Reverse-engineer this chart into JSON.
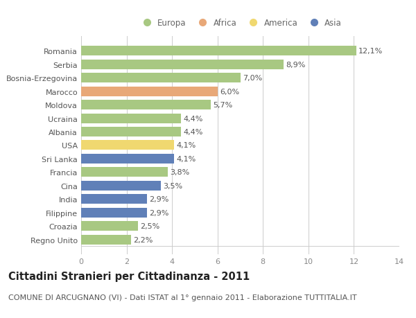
{
  "countries": [
    "Romania",
    "Serbia",
    "Bosnia-Erzegovina",
    "Marocco",
    "Moldova",
    "Ucraina",
    "Albania",
    "USA",
    "Sri Lanka",
    "Francia",
    "Cina",
    "India",
    "Filippine",
    "Croazia",
    "Regno Unito"
  ],
  "values": [
    12.1,
    8.9,
    7.0,
    6.0,
    5.7,
    4.4,
    4.4,
    4.1,
    4.1,
    3.8,
    3.5,
    2.9,
    2.9,
    2.5,
    2.2
  ],
  "labels": [
    "12,1%",
    "8,9%",
    "7,0%",
    "6,0%",
    "5,7%",
    "4,4%",
    "4,4%",
    "4,1%",
    "4,1%",
    "3,8%",
    "3,5%",
    "2,9%",
    "2,9%",
    "2,5%",
    "2,2%"
  ],
  "continents": [
    "Europa",
    "Europa",
    "Europa",
    "Africa",
    "Europa",
    "Europa",
    "Europa",
    "America",
    "Asia",
    "Europa",
    "Asia",
    "Asia",
    "Asia",
    "Europa",
    "Europa"
  ],
  "continent_colors": {
    "Europa": "#a8c882",
    "Africa": "#e8a878",
    "America": "#f0d870",
    "Asia": "#6080b8"
  },
  "legend_order": [
    "Europa",
    "Africa",
    "America",
    "Asia"
  ],
  "xlim": [
    0,
    14
  ],
  "xticks": [
    0,
    2,
    4,
    6,
    8,
    10,
    12,
    14
  ],
  "title": "Cittadini Stranieri per Cittadinanza - 2011",
  "subtitle": "COMUNE DI ARCUGNANO (VI) - Dati ISTAT al 1° gennaio 2011 - Elaborazione TUTTITALIA.IT",
  "background_color": "#ffffff",
  "grid_color": "#cccccc",
  "bar_height": 0.72,
  "title_fontsize": 10.5,
  "subtitle_fontsize": 8,
  "label_fontsize": 8,
  "tick_fontsize": 8,
  "legend_fontsize": 8.5
}
